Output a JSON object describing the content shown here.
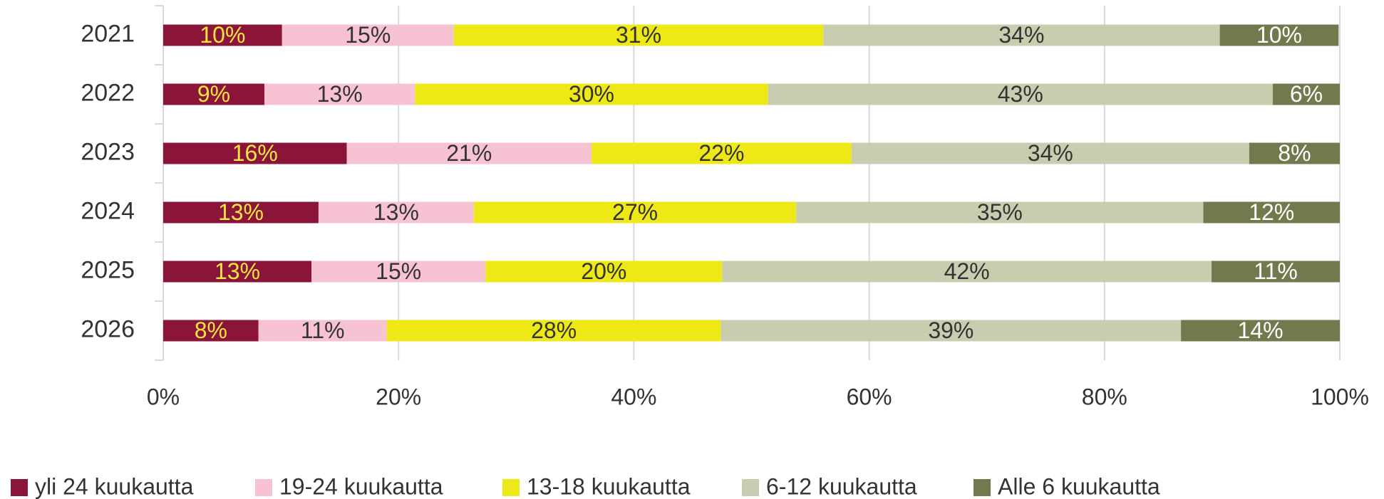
{
  "chart_data": {
    "type": "stacked-barh",
    "categories": [
      "2021",
      "2022",
      "2023",
      "2024",
      "2025",
      "2026"
    ],
    "series": [
      {
        "name": "yli 24 kuukautta",
        "color": "#8b1538",
        "label_color": "#f5e642",
        "values": [
          10.1,
          8.6,
          15.6,
          13.2,
          12.6,
          8.1
        ],
        "value_labels": [
          "10%",
          "9%",
          "16%",
          "13%",
          "13%",
          "8%"
        ]
      },
      {
        "name": "19-24 kuukautta",
        "color": "#f7c3d2",
        "label_color": "#333333",
        "values": [
          14.6,
          12.8,
          20.8,
          13.2,
          14.8,
          10.9
        ],
        "value_labels": [
          "15%",
          "13%",
          "21%",
          "13%",
          "15%",
          "11%"
        ]
      },
      {
        "name": "13-18 kuukautta",
        "color": "#eee817",
        "label_color": "#333333",
        "values": [
          31.4,
          30.0,
          22.1,
          27.4,
          20.1,
          28.4
        ],
        "value_labels": [
          "31%",
          "30%",
          "22%",
          "27%",
          "20%",
          "28%"
        ]
      },
      {
        "name": "6-12 kuukautta",
        "color": "#c8cdb0",
        "label_color": "#333333",
        "values": [
          33.7,
          42.9,
          33.8,
          34.6,
          41.6,
          39.1
        ],
        "value_labels": [
          "34%",
          "43%",
          "34%",
          "35%",
          "42%",
          "39%"
        ]
      },
      {
        "name": "Alle 6 kuukautta",
        "color": "#717a4d",
        "label_color": "#ffffff",
        "values": [
          10.1,
          5.7,
          7.7,
          11.6,
          10.9,
          13.5
        ],
        "value_labels": [
          "10%",
          "6%",
          "8%",
          "12%",
          "11%",
          "14%"
        ]
      }
    ],
    "xlim": [
      0,
      100
    ],
    "xticks": [
      {
        "value": 0,
        "label": "0%"
      },
      {
        "value": 20,
        "label": "20%"
      },
      {
        "value": 40,
        "label": "40%"
      },
      {
        "value": 60,
        "label": "60%"
      },
      {
        "value": 80,
        "label": "80%"
      },
      {
        "value": 100,
        "label": "100%"
      }
    ],
    "grid": true,
    "legend": "bottom"
  }
}
